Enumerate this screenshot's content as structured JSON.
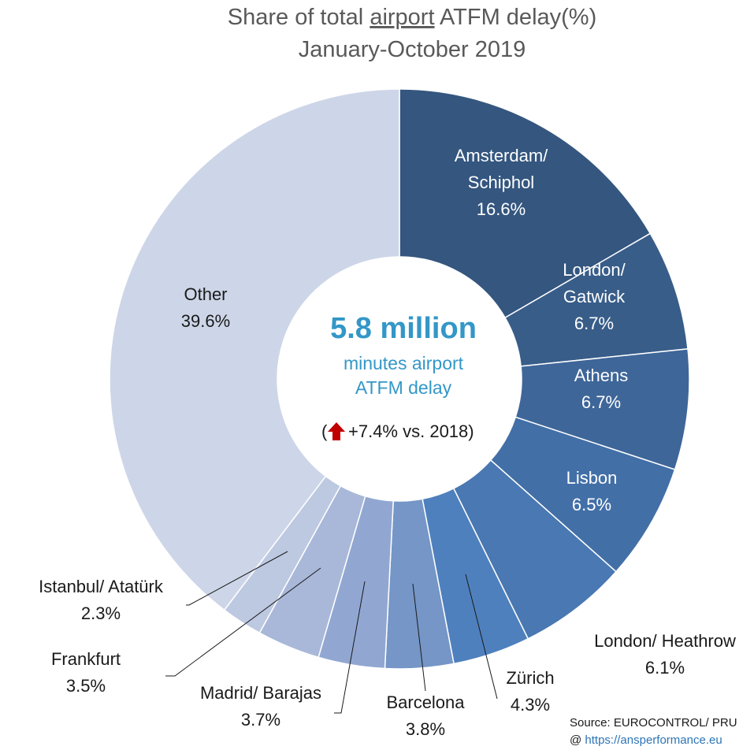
{
  "chart_data": {
    "type": "pie",
    "title": [
      "Share of total ",
      "airport",
      " ATFM delay(%)"
    ],
    "subtitle": "January-October 2019",
    "unit": "%",
    "slices": [
      {
        "name": [
          "Amsterdam/",
          "Schiphol"
        ],
        "value": 16.6,
        "value_label": "16.6%",
        "color": "#34567f"
      },
      {
        "name": [
          "London/",
          "Gatwick"
        ],
        "value": 6.7,
        "value_label": "6.7%",
        "color": "#385d89"
      },
      {
        "name": [
          "Athens"
        ],
        "value": 6.7,
        "value_label": "6.7%",
        "color": "#3e6699"
      },
      {
        "name": [
          "Lisbon"
        ],
        "value": 6.5,
        "value_label": "6.5%",
        "color": "#436fa7"
      },
      {
        "name": [
          "London/ Heathrow"
        ],
        "value": 6.1,
        "value_label": "6.1%",
        "color": "#4978b2"
      },
      {
        "name": [
          "Zürich"
        ],
        "value": 4.3,
        "value_label": "4.3%",
        "color": "#4f80be"
      },
      {
        "name": [
          "Barcelona"
        ],
        "value": 3.8,
        "value_label": "3.8%",
        "color": "#7596c6"
      },
      {
        "name": [
          "Madrid/ Barajas"
        ],
        "value": 3.7,
        "value_label": "3.7%",
        "color": "#91a7d2"
      },
      {
        "name": [
          "Frankfurt"
        ],
        "value": 3.5,
        "value_label": "3.5%",
        "color": "#a9b8d9"
      },
      {
        "name": [
          "Istanbul/ Atatürk"
        ],
        "value": 2.3,
        "value_label": "2.3%",
        "color": "#bdc8e1"
      },
      {
        "name": [
          "Other"
        ],
        "value": 39.6,
        "value_label": "39.6%",
        "color": "#cdd6e8"
      }
    ],
    "center": {
      "headline": "5.8 million",
      "subline_1": "minutes airport",
      "subline_2": "ATFM delay",
      "change_prefix": "(",
      "change_text": "+7.4% vs. 2018)",
      "change_arrow": "up-arrow-icon",
      "arrow_color": "#c00000"
    },
    "source": {
      "line_1": "Source: EUROCONTROL/ PRU",
      "line_2_prefix": "@ ",
      "line_2_link": "https://ansperformance.eu"
    }
  }
}
